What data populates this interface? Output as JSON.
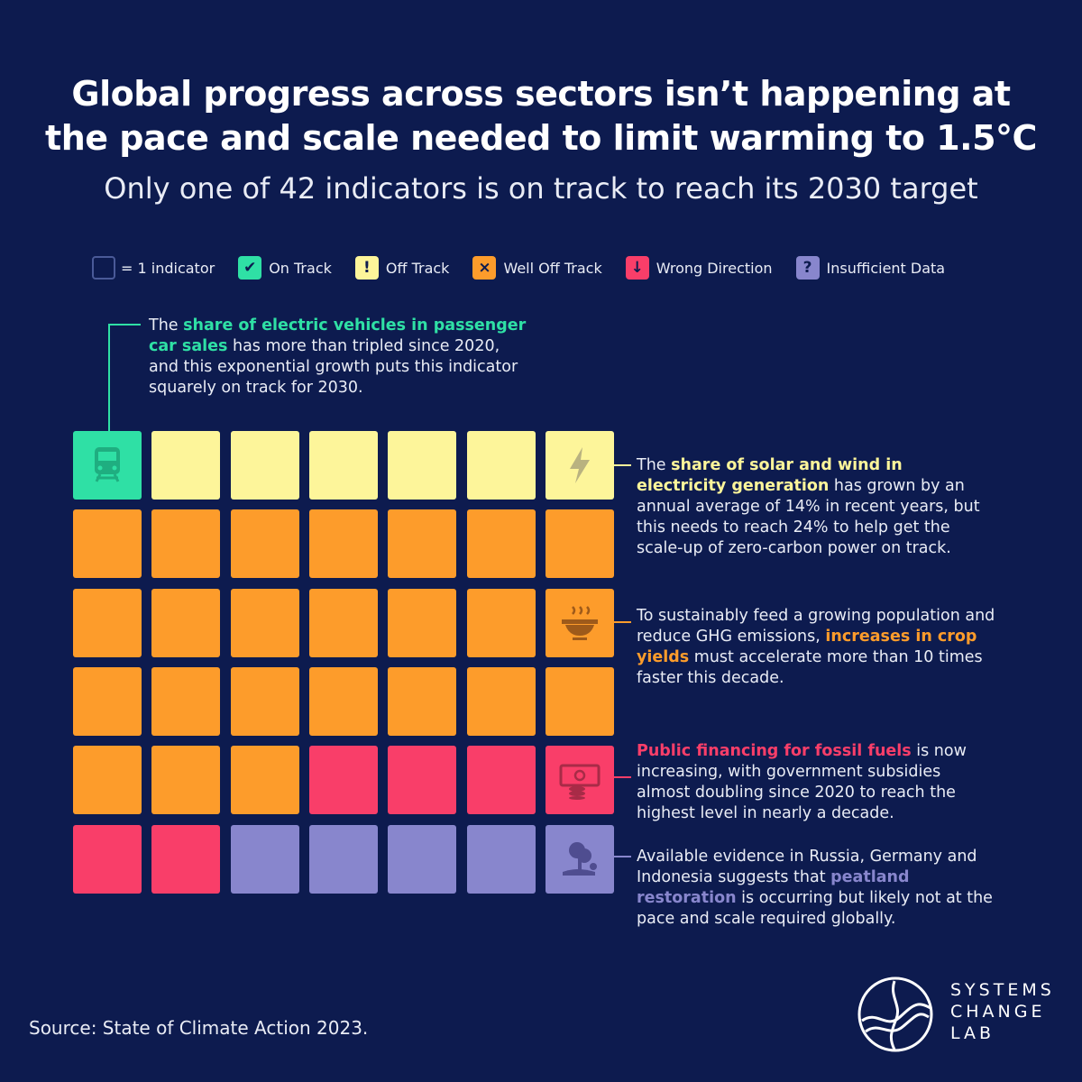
{
  "title": {
    "line1": "Global progress across sectors isn’t happening at",
    "line2": "the pace and scale needed to limit warming to 1.5°C"
  },
  "subtitle": "Only one of 42 indicators is on track to reach its 2030 target",
  "legend": [
    {
      "key": "unit",
      "label": "= 1 indicator",
      "symbol": "",
      "color": "transparent"
    },
    {
      "key": "on",
      "label": "On Track",
      "symbol": "✔",
      "color": "#2fe0a5"
    },
    {
      "key": "off",
      "label": "Off Track",
      "symbol": "!",
      "color": "#fdf59a"
    },
    {
      "key": "well_off",
      "label": "Well Off Track",
      "symbol": "×",
      "color": "#fd9c2b"
    },
    {
      "key": "wrong",
      "label": "Wrong Direction",
      "symbol": "↓",
      "color": "#f93e69"
    },
    {
      "key": "insufficient",
      "label": "Insufficient Data",
      "symbol": "?",
      "color": "#8886cd"
    }
  ],
  "chart_data": {
    "type": "waffle",
    "rows": 6,
    "cols": 7,
    "status_colors": {
      "on": "#2fe0a5",
      "off": "#fdf59a",
      "well_off": "#fd9c2b",
      "wrong": "#f93e69",
      "insufficient": "#8886cd"
    },
    "counts": {
      "on": 1,
      "off": 6,
      "well_off": 23,
      "wrong": 5,
      "insufficient": 7
    },
    "cells": [
      [
        "on",
        "off",
        "off",
        "off",
        "off",
        "off",
        "off"
      ],
      [
        "well_off",
        "well_off",
        "well_off",
        "well_off",
        "well_off",
        "well_off",
        "well_off"
      ],
      [
        "well_off",
        "well_off",
        "well_off",
        "well_off",
        "well_off",
        "well_off",
        "well_off"
      ],
      [
        "well_off",
        "well_off",
        "well_off",
        "well_off",
        "well_off",
        "well_off",
        "well_off"
      ],
      [
        "well_off",
        "well_off",
        "well_off",
        "wrong",
        "wrong",
        "wrong",
        "wrong"
      ],
      [
        "wrong",
        "wrong",
        "insufficient",
        "insufficient",
        "insufficient",
        "insufficient",
        "insufficient"
      ]
    ],
    "icons": [
      {
        "row": 0,
        "col": 0,
        "icon": "train-icon"
      },
      {
        "row": 0,
        "col": 6,
        "icon": "lightning-icon"
      },
      {
        "row": 2,
        "col": 6,
        "icon": "food-bowl-icon"
      },
      {
        "row": 4,
        "col": 6,
        "icon": "money-coins-icon"
      },
      {
        "row": 5,
        "col": 6,
        "icon": "tree-land-icon"
      }
    ]
  },
  "annotations": {
    "ev": {
      "pre": "The ",
      "highlight": "share of electric vehicles in passenger car sales",
      "post": " has more than tripled since 2020, and this exponential growth puts this indicator squarely on track for 2030.",
      "color": "#2fe0a5"
    },
    "solar": {
      "pre": "The ",
      "highlight": "share of solar and wind in electricity generation",
      "post": " has grown by an annual average of 14% in recent years, but this needs to reach 24% to help get the scale-up of zero-carbon power on track.",
      "color": "#fdf59a"
    },
    "crop": {
      "pre": "To sustainably feed a growing population and reduce GHG emissions, ",
      "highlight": "increases in crop yields",
      "post": " must accelerate more than 10 times faster this decade.",
      "color": "#fd9c2b"
    },
    "fossil": {
      "pre": "",
      "highlight": "Public financing for fossil fuels",
      "post": " is now increasing, with government subsidies almost doubling since 2020 to reach the highest level in nearly a decade.",
      "color": "#f93e69"
    },
    "peat": {
      "pre": "Available evidence in Russia, Germany and Indonesia suggests that ",
      "highlight": "peatland restoration",
      "post": " is occurring but likely not at the pace and scale required globally.",
      "color": "#8886cd"
    }
  },
  "source": "Source: State of Climate Action 2023.",
  "logo": {
    "line1": "SYSTEMS",
    "line2": "CHANGE",
    "line3": "LAB"
  }
}
